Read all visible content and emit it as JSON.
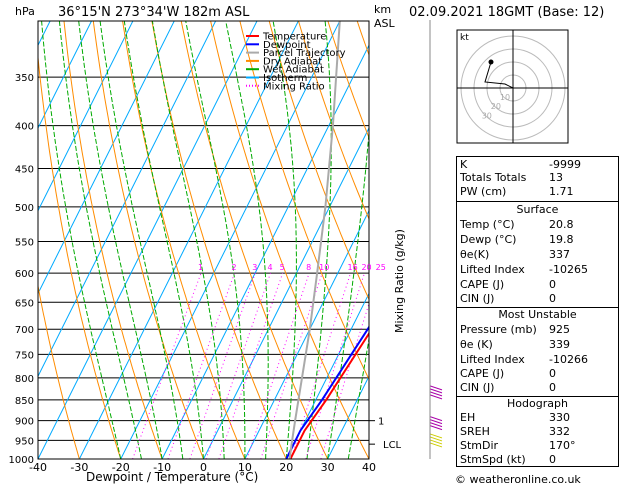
{
  "header": {
    "location": "36°15'N  273°34'W  182m  ASL",
    "datetime": "02.09.2021  18GMT  (Base: 12)",
    "pressure_unit": "hPa",
    "km_label": "km",
    "asl_label": "ASL"
  },
  "chart_data": {
    "type": "line",
    "title": "Skew-T log-P diagram",
    "xlabel": "Dewpoint / Temperature (°C)",
    "ylabel": "hPa",
    "right_axis_label": "Mixing Ratio (g/kg)",
    "xlim": [
      -40,
      40
    ],
    "ylim": [
      1000,
      300
    ],
    "x_ticks": [
      "-40",
      "-30",
      "-20",
      "-10",
      "0",
      "10",
      "20",
      "30",
      "40"
    ],
    "pressure_levels": [
      1000,
      950,
      900,
      850,
      800,
      750,
      700,
      650,
      600,
      550,
      500,
      450,
      400,
      350,
      300
    ],
    "pressure_tick_labels": [
      "1000",
      "950",
      "900",
      "850",
      "800",
      "750",
      "700",
      "650",
      "600",
      "550",
      "500",
      "450",
      "400",
      "350"
    ],
    "mixing_ratio_labels": [
      "1",
      "2",
      "3",
      "4",
      "5",
      "8",
      "10",
      "16",
      "20",
      "25"
    ],
    "mixing_ratio_values": [
      1,
      2,
      3,
      4,
      5,
      8,
      10,
      16,
      20,
      25
    ],
    "km_ticks": [
      {
        "label": "1",
        "pressure": 900
      }
    ],
    "lcl_label": "LCL",
    "lcl_pressure": 960,
    "legend": [
      {
        "label": "Temperature",
        "color": "#ff0000",
        "style": "solid"
      },
      {
        "label": "Dewpoint",
        "color": "#0000ff",
        "style": "solid"
      },
      {
        "label": "Parcel Trajectory",
        "color": "#aaaaaa",
        "style": "solid"
      },
      {
        "label": "Dry Adiabat",
        "color": "#ff8c00",
        "style": "solid"
      },
      {
        "label": "Wet Adiabat",
        "color": "#00aa00",
        "style": "solid"
      },
      {
        "label": "Isotherm",
        "color": "#00aaff",
        "style": "solid"
      },
      {
        "label": "Mixing Ratio",
        "color": "#ff00ff",
        "style": "dotted"
      }
    ],
    "series": [
      {
        "name": "Temperature",
        "color": "#ff0000",
        "points": [
          [
            1000,
            21
          ],
          [
            925,
            21
          ],
          [
            850,
            22.5
          ],
          [
            700,
            25
          ],
          [
            500,
            30
          ],
          [
            400,
            35
          ],
          [
            350,
            40
          ]
        ]
      },
      {
        "name": "Dewpoint",
        "color": "#0000ff",
        "points": [
          [
            1000,
            20
          ],
          [
            925,
            20
          ],
          [
            850,
            21.5
          ],
          [
            700,
            24
          ],
          [
            500,
            28
          ],
          [
            400,
            31
          ],
          [
            350,
            33
          ]
        ]
      },
      {
        "name": "Parcel Trajectory",
        "color": "#aaaaaa",
        "points": [
          [
            1000,
            20.8
          ],
          [
            960,
            19.5
          ],
          [
            900,
            17.5
          ],
          [
            800,
            14
          ],
          [
            700,
            10
          ],
          [
            600,
            5
          ],
          [
            500,
            -1
          ],
          [
            400,
            -9
          ],
          [
            300,
            -20
          ]
        ]
      }
    ],
    "wind_barbs": [
      {
        "pressure": 850,
        "color": "#aa00aa"
      },
      {
        "pressure": 925,
        "color": "#aa00aa"
      },
      {
        "pressure": 970,
        "color": "#cccc00"
      }
    ]
  },
  "hodograph": {
    "label": "kt",
    "rings": [
      10,
      20,
      30,
      40
    ],
    "ring_labels": [
      "10",
      "20",
      "30"
    ]
  },
  "indices": {
    "k_label": "K",
    "k_value": "-9999",
    "tt_label": "Totals Totals",
    "tt_value": "13",
    "pw_label": "PW (cm)",
    "pw_value": "1.71",
    "surface": {
      "title": "Surface",
      "rows": [
        {
          "label": "Temp (°C)",
          "value": "20.8"
        },
        {
          "label": "Dewp (°C)",
          "value": "19.8"
        },
        {
          "label": "θe(K)",
          "value": "337"
        },
        {
          "label": "Lifted Index",
          "value": "-10265"
        },
        {
          "label": "CAPE (J)",
          "value": "0"
        },
        {
          "label": "CIN (J)",
          "value": "0"
        }
      ]
    },
    "most_unstable": {
      "title": "Most Unstable",
      "rows": [
        {
          "label": "Pressure (mb)",
          "value": "925"
        },
        {
          "label": "θe (K)",
          "value": "339"
        },
        {
          "label": "Lifted Index",
          "value": "-10266"
        },
        {
          "label": "CAPE (J)",
          "value": "0"
        },
        {
          "label": "CIN (J)",
          "value": "0"
        }
      ]
    },
    "hodograph": {
      "title": "Hodograph",
      "rows": [
        {
          "label": "EH",
          "value": "330"
        },
        {
          "label": "SREH",
          "value": "332"
        },
        {
          "label": "StmDir",
          "value": "170°"
        },
        {
          "label": "StmSpd (kt)",
          "value": "0"
        }
      ]
    }
  },
  "footer": {
    "copyright": "© weatheronline.co.uk"
  }
}
